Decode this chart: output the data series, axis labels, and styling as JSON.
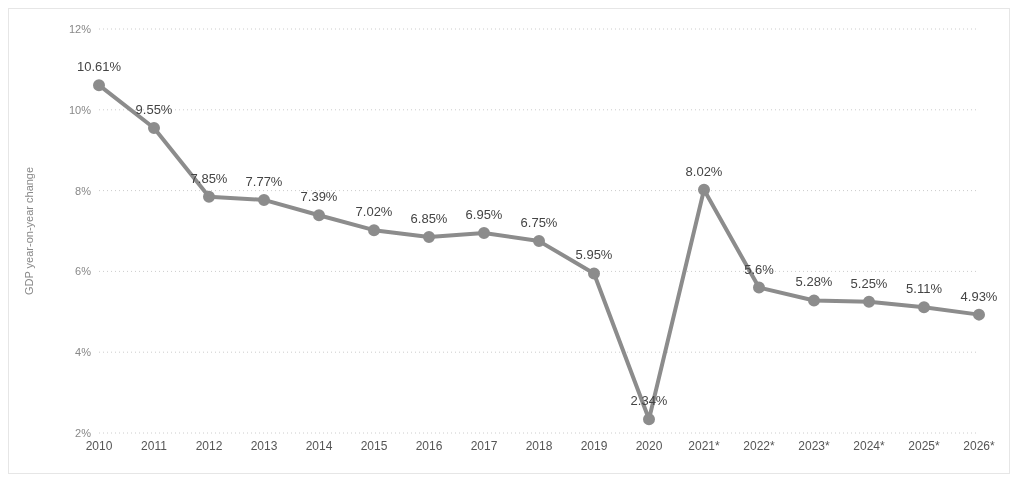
{
  "chart_data": {
    "type": "line",
    "ylabel": "GDP year-on-year change",
    "categories": [
      "2010",
      "2011",
      "2012",
      "2013",
      "2014",
      "2015",
      "2016",
      "2017",
      "2018",
      "2019",
      "2020",
      "2021*",
      "2022*",
      "2023*",
      "2024*",
      "2025*",
      "2026*"
    ],
    "series": [
      {
        "color": "#8c8c8c",
        "values": [
          10.61,
          9.55,
          7.85,
          7.77,
          7.39,
          7.02,
          6.85,
          6.95,
          6.75,
          5.95,
          2.34,
          8.02,
          5.6,
          5.28,
          5.25,
          5.11,
          4.93
        ],
        "value_labels": [
          "10.61%",
          "9.55%",
          "7.85%",
          "7.77%",
          "7.39%",
          "7.02%",
          "6.85%",
          "6.95%",
          "6.75%",
          "5.95%",
          "2.34%",
          "8.02%",
          "5.6%",
          "5.28%",
          "5.25%",
          "5.11%",
          "4.93%"
        ]
      }
    ],
    "ylim": [
      2,
      12
    ],
    "yticks": [
      {
        "value": 2,
        "label": "2%"
      },
      {
        "value": 4,
        "label": "4%"
      },
      {
        "value": 6,
        "label": "6%"
      },
      {
        "value": 8,
        "label": "8%"
      },
      {
        "value": 10,
        "label": "10%"
      },
      {
        "value": 12,
        "label": "12%"
      }
    ],
    "grid": "y",
    "marker": "circle",
    "line_style": "solid"
  }
}
